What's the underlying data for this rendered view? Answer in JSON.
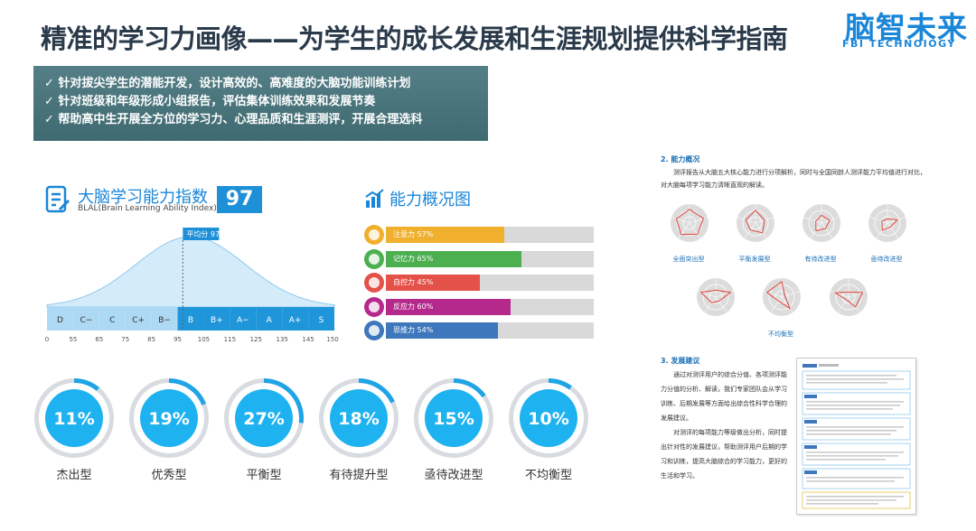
{
  "header": {
    "title": "精准的学习力画像——为学生的成长发展和生涯规划提供科学指南",
    "brand_cn": "脑智未来",
    "brand_en": "FBI TECHNOIOGY"
  },
  "banner": {
    "items": [
      "✓ 针对拔尖学生的潜能开发，设计高效的、高难度的大脑功能训练计划",
      "✓ 针对班级和年级形成小组报告，评估集体训练效果和发展节奏",
      "✓ 帮助高中生开展全方位的学习力、心理品质和生涯测评，开展合理选科"
    ]
  },
  "blal": {
    "title": "大脑学习能力指数",
    "score": "97",
    "subtitle": "BLAL(Brain Learning Ability Index)",
    "average_label": "平均分 97"
  },
  "chart_data": [
    {
      "type": "area",
      "title": "",
      "grade_labels": [
        "D",
        "C−",
        "C",
        "C+",
        "B−",
        "B",
        "B+",
        "A−",
        "A",
        "A+",
        "S"
      ],
      "x_ticks": [
        "0",
        "55",
        "65",
        "75",
        "85",
        "95",
        "105",
        "115",
        "125",
        "135",
        "145",
        "150"
      ],
      "tick_values": [
        0,
        55,
        65,
        75,
        85,
        95,
        105,
        115,
        125,
        135,
        145,
        150
      ],
      "curve": "normal",
      "mean": 97,
      "highlight_grades": [
        "B",
        "B+",
        "A−",
        "A",
        "A+",
        "S"
      ],
      "colors": {
        "curve": "#8ec9ee",
        "band_light": "#aed9f5",
        "band_dark": "#1f95da"
      }
    },
    {
      "type": "bar",
      "title": "能力概况图",
      "categories": [
        "注意力",
        "记忆力",
        "自控力",
        "反应力",
        "思维力"
      ],
      "values": [
        57,
        65,
        45,
        60,
        54
      ],
      "labels": [
        "注意力 57%",
        "记忆力 65%",
        "自控力 45%",
        "反应力 60%",
        "思维力 54%"
      ],
      "colors": [
        "#f0b02e",
        "#4caf50",
        "#e35149",
        "#b5298c",
        "#3f77bd"
      ],
      "xlim": [
        0,
        100
      ]
    },
    {
      "type": "pie",
      "title": "",
      "categories": [
        "杰出型",
        "优秀型",
        "平衡型",
        "有待提升型",
        "亟待改进型",
        "不均衡型"
      ],
      "values": [
        11,
        19,
        27,
        18,
        15,
        10
      ],
      "labels": [
        "11%",
        "19%",
        "27%",
        "18%",
        "15%",
        "10%"
      ],
      "colors": {
        "ring": "#1fa4e6",
        "track": "#d8dce0",
        "disc": "#1fb2f0"
      }
    }
  ],
  "report": {
    "sec2_title": "2. 能力概况",
    "sec2_body": "测评报告从大脑五大核心能力进行分项解析，同时与全国同龄人测评能力平均值进行对比，对大脑每项学习能力清晰直观的解读。",
    "radar_types": [
      "全面突出型",
      "平衡发展型",
      "有待改进型",
      "亟待改进型",
      "不均衡型"
    ],
    "sec3_title": "3. 发展建议",
    "sec3_paragraphs": [
      "通过对测评用户的综合分值、各项测评能力分值的分析、解读，我们专家团队会从学习训练、后期发展等方面给出综合性科学合理的发展建议。",
      "对测评的每项能力等级做出分析，同时提出针对性的发展建议，帮助测评用户后期的学习和训练，提高大脑综合的学习能力，更好的生活和学习。"
    ]
  },
  "colors": {
    "primary": "#1a86d8",
    "title": "#2a3a4a",
    "banner": "#4b767d",
    "radar_line": "#e0443a",
    "radar_bg": "#dcdcdc"
  }
}
